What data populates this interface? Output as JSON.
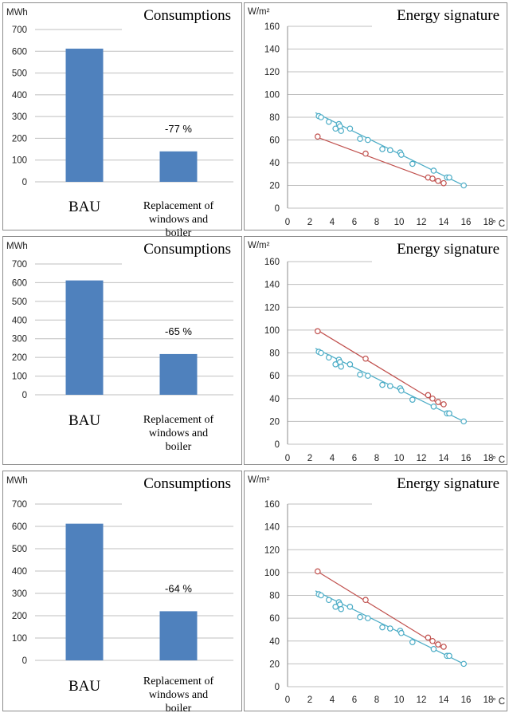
{
  "colors": {
    "bar": "#4f81bd",
    "grid": "#bfbfbf",
    "frame": "#8c8c8c",
    "series_blue": "#4bacc6",
    "series_red": "#c0504d"
  },
  "chart_data": [
    {
      "type": "bar",
      "title": "Consumptions",
      "ylabel": "MWh",
      "categories": [
        "BAU",
        "Replacement of windows and boiler"
      ],
      "values": [
        612,
        140
      ],
      "data_labels": [
        "",
        "-77 %"
      ],
      "ylim": [
        0,
        700
      ],
      "yticks": [
        0,
        100,
        200,
        300,
        400,
        500,
        600,
        700
      ]
    },
    {
      "type": "scatter",
      "title": "Energy signature",
      "ylabel": "W/m²",
      "xlabel": "° C",
      "xlim": [
        0,
        18
      ],
      "ylim": [
        0,
        160
      ],
      "xticks": [
        0,
        2,
        4,
        6,
        8,
        10,
        12,
        14,
        16,
        18
      ],
      "yticks": [
        0,
        20,
        40,
        60,
        80,
        100,
        120,
        140,
        160
      ],
      "series": [
        {
          "color": "series_blue",
          "x": [
            2.8,
            3.0,
            3.7,
            4.3,
            4.6,
            4.7,
            4.8,
            5.6,
            6.5,
            7.2,
            8.5,
            9.2,
            10.1,
            10.2,
            11.2,
            13.1,
            14.3,
            14.5,
            15.8
          ],
          "y": [
            81,
            80,
            76,
            70,
            74,
            72,
            68,
            70,
            61,
            60,
            52,
            51,
            49,
            47,
            39,
            33,
            27,
            27,
            20
          ],
          "fit": [
            [
              2.5,
              84
            ],
            [
              16,
              19
            ]
          ]
        },
        {
          "color": "series_red",
          "x": [
            2.7,
            7.0,
            12.6,
            13.0,
            13.5,
            14.0
          ],
          "y": [
            63,
            48,
            27,
            26,
            24,
            22
          ],
          "fit": [
            [
              2.5,
              63
            ],
            [
              14,
              21
            ]
          ]
        }
      ]
    },
    {
      "type": "bar",
      "title": "Consumptions",
      "ylabel": "MWh",
      "categories": [
        "BAU",
        "Replacement of windows and boiler"
      ],
      "values": [
        612,
        218
      ],
      "data_labels": [
        "",
        "-65 %"
      ],
      "ylim": [
        0,
        700
      ],
      "yticks": [
        0,
        100,
        200,
        300,
        400,
        500,
        600,
        700
      ]
    },
    {
      "type": "scatter",
      "title": "Energy signature",
      "ylabel": "W/m²",
      "xlabel": "° C",
      "xlim": [
        0,
        18
      ],
      "ylim": [
        0,
        160
      ],
      "xticks": [
        0,
        2,
        4,
        6,
        8,
        10,
        12,
        14,
        16,
        18
      ],
      "yticks": [
        0,
        20,
        40,
        60,
        80,
        100,
        120,
        140,
        160
      ],
      "series": [
        {
          "color": "series_blue",
          "x": [
            2.8,
            3.0,
            3.7,
            4.3,
            4.6,
            4.7,
            4.8,
            5.6,
            6.5,
            7.2,
            8.5,
            9.2,
            10.1,
            10.2,
            11.2,
            13.1,
            14.3,
            14.5,
            15.8
          ],
          "y": [
            81,
            80,
            76,
            70,
            74,
            72,
            68,
            70,
            61,
            60,
            52,
            51,
            49,
            47,
            39,
            33,
            27,
            27,
            20
          ],
          "fit": [
            [
              2.5,
              84
            ],
            [
              16,
              19
            ]
          ]
        },
        {
          "color": "series_red",
          "x": [
            2.7,
            7.0,
            12.6,
            13.0,
            13.5,
            14.0
          ],
          "y": [
            99,
            75,
            43,
            40,
            37,
            35
          ],
          "fit": [
            [
              2.5,
              101
            ],
            [
              14,
              33
            ]
          ]
        }
      ]
    },
    {
      "type": "bar",
      "title": "Consumptions",
      "ylabel": "MWh",
      "categories": [
        "BAU",
        "Replacement of windows and boiler"
      ],
      "values": [
        612,
        220
      ],
      "data_labels": [
        "",
        "-64 %"
      ],
      "ylim": [
        0,
        700
      ],
      "yticks": [
        0,
        100,
        200,
        300,
        400,
        500,
        600,
        700
      ]
    },
    {
      "type": "scatter",
      "title": "Energy signature",
      "ylabel": "W/m²",
      "xlabel": "° C",
      "xlim": [
        0,
        18
      ],
      "ylim": [
        0,
        160
      ],
      "xticks": [
        0,
        2,
        4,
        6,
        8,
        10,
        12,
        14,
        16,
        18
      ],
      "yticks": [
        0,
        20,
        40,
        60,
        80,
        100,
        120,
        140,
        160
      ],
      "series": [
        {
          "color": "series_blue",
          "x": [
            2.8,
            3.0,
            3.7,
            4.3,
            4.6,
            4.7,
            4.8,
            5.6,
            6.5,
            7.2,
            8.5,
            9.2,
            10.1,
            10.2,
            11.2,
            13.1,
            14.3,
            14.5,
            15.8
          ],
          "y": [
            81,
            80,
            76,
            70,
            74,
            72,
            68,
            70,
            61,
            60,
            52,
            51,
            49,
            47,
            39,
            33,
            27,
            27,
            20
          ],
          "fit": [
            [
              2.5,
              84
            ],
            [
              16,
              19
            ]
          ]
        },
        {
          "color": "series_red",
          "x": [
            2.7,
            7.0,
            12.6,
            13.0,
            13.5,
            14.0
          ],
          "y": [
            101,
            76,
            43,
            40,
            37,
            35
          ],
          "fit": [
            [
              2.5,
              102
            ],
            [
              14,
              33
            ]
          ]
        }
      ]
    }
  ]
}
